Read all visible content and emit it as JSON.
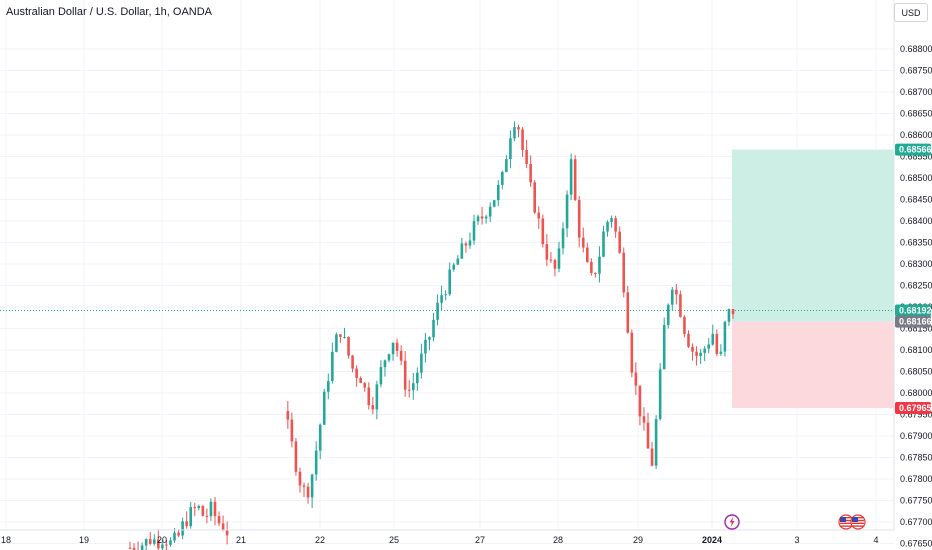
{
  "header": {
    "title": "Australian Dollar / U.S. Dollar, 1h, OANDA"
  },
  "price_axis": {
    "currency": "USD"
  },
  "colors": {
    "up": "#26a69a",
    "down": "#ef5350",
    "target_zone": "#cdeee5",
    "stop_zone": "#fcd9dc",
    "target_badge": "#22ab94",
    "stop_badge": "#f23645",
    "entry_badge": "#787b86",
    "last_line": "#22ab94"
  },
  "icons": {
    "events": [
      "lightning-event-icon",
      "us-flag-event-icon",
      "us-flag-event-icon"
    ]
  },
  "chart_data": {
    "type": "candlestick",
    "title": "Australian Dollar / U.S. Dollar, 1h, OANDA",
    "xlabel": "",
    "ylabel": "",
    "ylim": [
      0.6765,
      0.6885
    ],
    "y_ticks": [
      "0.68800",
      "0.68750",
      "0.68700",
      "0.68650",
      "0.68600",
      "0.68550",
      "0.68500",
      "0.68450",
      "0.68400",
      "0.68350",
      "0.68300",
      "0.68250",
      "0.68200",
      "0.68150",
      "0.68100",
      "0.68050",
      "0.68000",
      "0.67950",
      "0.67900",
      "0.67850",
      "0.67800",
      "0.67750",
      "0.67700",
      "0.67650"
    ],
    "x_ticks": [
      "18",
      "19",
      "20",
      "21",
      "22",
      "25",
      "27",
      "28",
      "29",
      "2024",
      "3",
      "4"
    ],
    "last_price": "0.68192",
    "position": {
      "target": "0.68566",
      "entry": "0.68166",
      "stop": "0.67965"
    },
    "price_path": [
      [
        0,
        0.6764
      ],
      [
        1,
        0.67645
      ],
      [
        2,
        0.6765
      ],
      [
        3,
        0.6766
      ],
      [
        4,
        0.67655
      ],
      [
        5,
        0.67665
      ],
      [
        6,
        0.6765
      ],
      [
        7,
        0.6766
      ],
      [
        8,
        0.677
      ],
      [
        9,
        0.6772
      ],
      [
        10,
        0.67735
      ],
      [
        11,
        0.6771
      ],
      [
        12,
        0.6773
      ],
      [
        13,
        0.677
      ],
      [
        14,
        0.6769
      ],
      [
        15,
        0.67655
      ],
      [
        16,
        0.6766
      ],
      [
        17,
        0.677
      ],
      [
        18,
        0.678
      ],
      [
        19,
        0.6792
      ],
      [
        20,
        0.6799
      ],
      [
        21,
        0.6803
      ],
      [
        22,
        0.68
      ],
      [
        23,
        0.6794
      ],
      [
        24,
        0.6787
      ],
      [
        25,
        0.678
      ],
      [
        26,
        0.6776
      ],
      [
        27,
        0.6782
      ],
      [
        28,
        0.6792
      ],
      [
        29,
        0.6802
      ],
      [
        30,
        0.681
      ],
      [
        31,
        0.6815
      ],
      [
        32,
        0.681
      ],
      [
        33,
        0.6805
      ],
      [
        34,
        0.6804
      ],
      [
        35,
        0.6799
      ],
      [
        36,
        0.6798
      ],
      [
        37,
        0.6805
      ],
      [
        38,
        0.681
      ],
      [
        39,
        0.6813
      ],
      [
        40,
        0.6806
      ],
      [
        41,
        0.68
      ],
      [
        42,
        0.6803
      ],
      [
        43,
        0.6808
      ],
      [
        44,
        0.6812
      ],
      [
        45,
        0.6818
      ],
      [
        46,
        0.6823
      ],
      [
        47,
        0.6826
      ],
      [
        48,
        0.683
      ],
      [
        49,
        0.6833
      ],
      [
        50,
        0.6836
      ],
      [
        51,
        0.6839
      ],
      [
        52,
        0.6841
      ],
      [
        53,
        0.6844
      ],
      [
        54,
        0.6846
      ],
      [
        55,
        0.685
      ],
      [
        56,
        0.686
      ],
      [
        57,
        0.6865
      ],
      [
        58,
        0.6856
      ],
      [
        59,
        0.6848
      ],
      [
        60,
        0.6842
      ],
      [
        61,
        0.6835
      ],
      [
        62,
        0.683
      ],
      [
        63,
        0.6828
      ],
      [
        64,
        0.684
      ],
      [
        65,
        0.6855
      ],
      [
        66,
        0.684
      ],
      [
        67,
        0.6832
      ],
      [
        68,
        0.6826
      ],
      [
        69,
        0.683
      ],
      [
        70,
        0.6838
      ],
      [
        71,
        0.6842
      ],
      [
        72,
        0.6835
      ],
      [
        73,
        0.6824
      ],
      [
        74,
        0.6807
      ],
      [
        75,
        0.6798
      ],
      [
        76,
        0.679
      ],
      [
        77,
        0.6783
      ],
      [
        78,
        0.6799
      ],
      [
        79,
        0.6818
      ],
      [
        80,
        0.6826
      ],
      [
        81,
        0.6821
      ],
      [
        82,
        0.6814
      ],
      [
        83,
        0.681
      ],
      [
        84,
        0.6808
      ],
      [
        85,
        0.6811
      ],
      [
        86,
        0.6814
      ],
      [
        87,
        0.6806
      ],
      [
        88,
        0.6818
      ],
      [
        89,
        0.68192
      ]
    ]
  }
}
